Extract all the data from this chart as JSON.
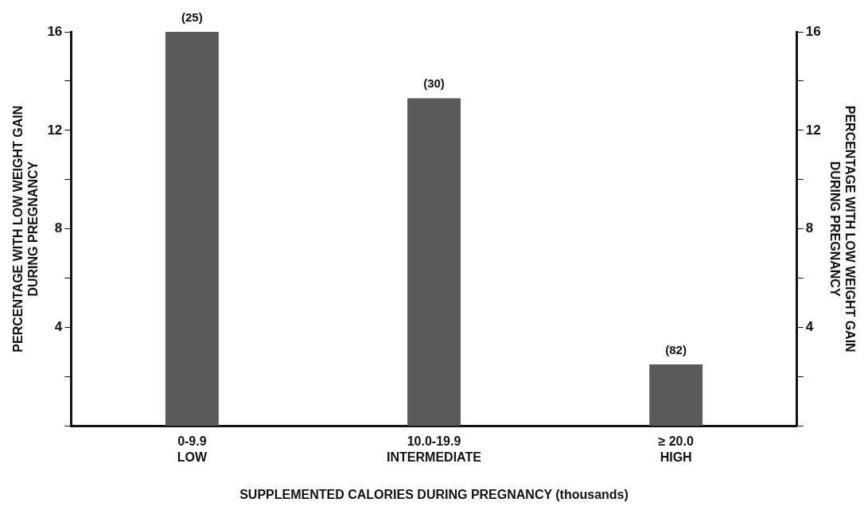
{
  "chart_data": {
    "type": "bar",
    "categories": [
      "0-9.9\nLOW",
      "10.0-19.9\nINTERMEDIATE",
      "≥ 20.0\nHIGH"
    ],
    "values": [
      16,
      13.3,
      2.5
    ],
    "color": "#5a5a5a",
    "xlabel": "SUPPLEMENTED CALORIES DURING PREGNANCY (thousands)",
    "ylabel": "PERCENTAGE WITH LOW WEIGHT GAIN\nDURING PREGNANCY",
    "y2label": "PERCENTAGE WITH LOW WEIGHT GAIN\nDURING PREGNANCY",
    "ylim": [
      0,
      16
    ],
    "yticks": [
      {
        "value": 0,
        "label": null
      },
      {
        "value": 2,
        "label": null
      },
      4,
      {
        "value": 6,
        "label": null
      },
      8,
      {
        "value": 10,
        "label": null
      },
      12,
      {
        "value": 14,
        "label": null
      },
      16
    ],
    "y2lim": [
      0,
      16
    ],
    "y2ticks": [
      {
        "value": 0,
        "label": null
      },
      {
        "value": 2,
        "label": null
      },
      4,
      {
        "value": 6,
        "label": null
      },
      8,
      {
        "value": 10,
        "label": null
      },
      12,
      {
        "value": 14,
        "label": null
      },
      16
    ],
    "annotations": [
      {
        "text": "(25)",
        "x": "0-9.9\nLOW",
        "y": 16
      },
      {
        "text": "(30)",
        "x": "10.0-19.9\nINTERMEDIATE",
        "y": 13.3
      },
      {
        "text": "(82)",
        "x": "≥ 20.0\nHIGH",
        "y": 2.5
      }
    ],
    "grid": false,
    "legend": false
  }
}
